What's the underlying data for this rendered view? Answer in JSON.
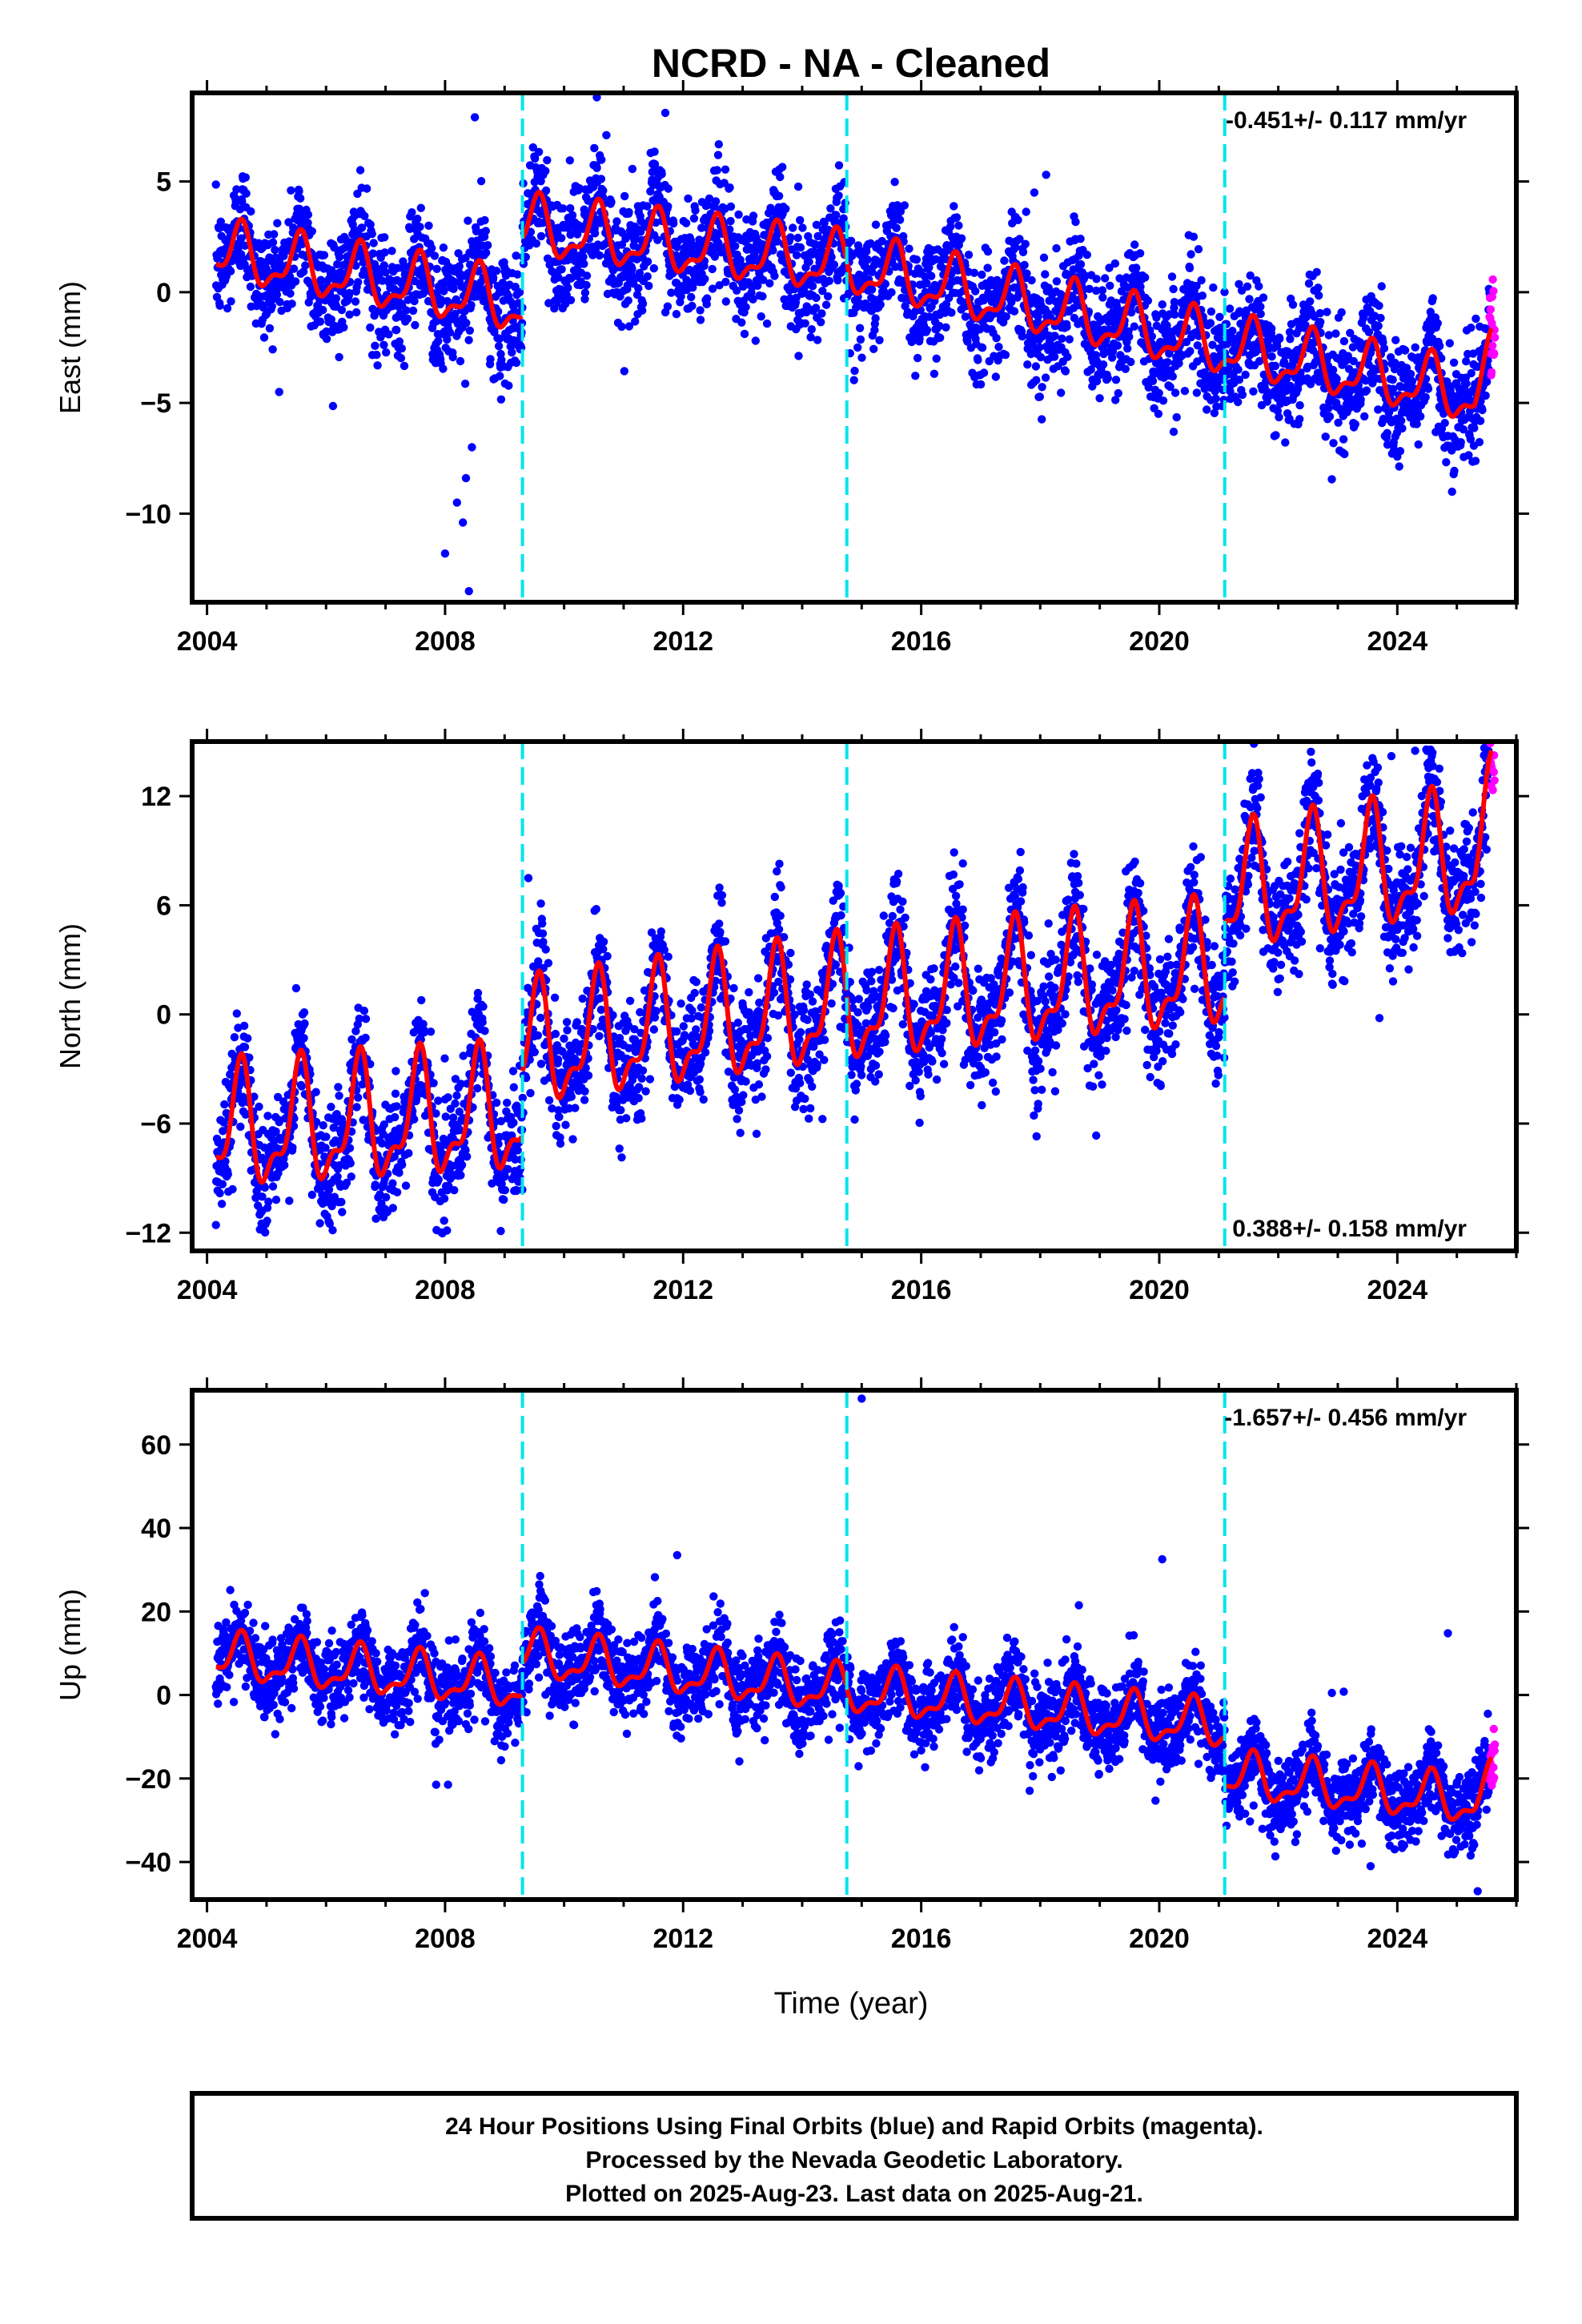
{
  "title": "NCRD  - NA - Cleaned",
  "footer": {
    "line1": "24 Hour Positions Using Final Orbits (blue) and Rapid Orbits (magenta).",
    "line2": "Processed by the Nevada Geodetic Laboratory.",
    "line3": "Plotted on 2025-Aug-23. Last data on 2025-Aug-21."
  },
  "colors": {
    "final_orbits": "#0000ff",
    "rapid_orbits": "#ff00ff",
    "model_fit": "#ff0000",
    "offset_lines": "#00e5ee"
  },
  "chart_data": [
    {
      "type": "scatter",
      "ylabel": "East (mm)",
      "xlabel": "",
      "rate_label": "-0.451+/- 0.117 mm/yr",
      "xlim": [
        2003.75,
        2026.0
      ],
      "ylim": [
        -14,
        9
      ],
      "xticks": [
        2004,
        2008,
        2012,
        2016,
        2020,
        2024
      ],
      "xtick_labels": [
        "2004",
        "2008",
        "2012",
        "2016",
        "2020",
        "2024"
      ],
      "yticks": [
        -10,
        -5,
        0,
        5
      ],
      "ytick_labels": [
        "−10",
        "−5",
        "0",
        "5"
      ],
      "offset_epochs": [
        2009.3,
        2014.75,
        2021.1
      ],
      "model": {
        "knots": [
          [
            2004.15,
            1.8
          ],
          [
            2009.3,
            -0.6
          ],
          [
            2009.3,
            2.9
          ],
          [
            2014.75,
            1.2
          ],
          [
            2021.1,
            -2.5
          ],
          [
            2025.6,
            -4.8
          ]
        ],
        "annual_amplitude": 1.2,
        "peak_phase_year": 0.55,
        "end_upturn": 1.5
      },
      "scatter_model": {
        "start": 2004.15,
        "end": 2025.55,
        "rapid_start": 2025.55,
        "rapid_end": 2025.64,
        "scatter_sd": 1.3
      },
      "outliers": [
        [
          2008.0,
          -11.8
        ],
        [
          2008.2,
          -9.5
        ],
        [
          2008.3,
          -10.4
        ],
        [
          2008.35,
          -8.4
        ],
        [
          2008.4,
          -13.5
        ],
        [
          2008.45,
          -7.0
        ],
        [
          2008.5,
          7.9
        ],
        [
          2010.55,
          8.8
        ],
        [
          2011.7,
          8.1
        ],
        [
          2017.9,
          4.5
        ],
        [
          2018.1,
          5.3
        ]
      ],
      "series": [
        {
          "name": "Final Orbits (blue)",
          "role": "final"
        },
        {
          "name": "Rapid Orbits (magenta)",
          "role": "rapid"
        }
      ]
    },
    {
      "type": "scatter",
      "ylabel": "North (mm)",
      "xlabel": "",
      "rate_label": "0.388+/- 0.158 mm/yr",
      "xlim": [
        2003.75,
        2026.0
      ],
      "ylim": [
        -13,
        15
      ],
      "xticks": [
        2004,
        2008,
        2012,
        2016,
        2020,
        2024
      ],
      "xtick_labels": [
        "2004",
        "2008",
        "2012",
        "2016",
        "2020",
        "2024"
      ],
      "yticks": [
        -12,
        -6,
        0,
        6,
        12
      ],
      "ytick_labels": [
        "−12",
        "−6",
        "0",
        "6",
        "12"
      ],
      "offset_epochs": [
        2009.3,
        2014.75,
        2021.1
      ],
      "model": {
        "knots": [
          [
            2004.15,
            -6.5
          ],
          [
            2009.3,
            -5.5
          ],
          [
            2009.3,
            -2.0
          ],
          [
            2014.75,
            0.5
          ],
          [
            2021.1,
            2.5
          ],
          [
            2021.1,
            6.5
          ],
          [
            2025.6,
            8.8
          ]
        ],
        "annual_amplitude": 3.0,
        "peak_phase_year": 0.55,
        "end_upturn": 1.5
      },
      "scatter_model": {
        "start": 2004.15,
        "end": 2025.55,
        "rapid_start": 2025.55,
        "rapid_end": 2025.64,
        "scatter_sd": 1.6
      },
      "outliers": [
        [
          2009.4,
          7.5
        ],
        [
          2016.7,
          8.3
        ],
        [
          2024.3,
          14.5
        ],
        [
          2023.9,
          14.2
        ],
        [
          2025.5,
          14.5
        ],
        [
          2023.7,
          -0.2
        ]
      ],
      "series": [
        {
          "name": "Final Orbits (blue)",
          "role": "final"
        },
        {
          "name": "Rapid Orbits (magenta)",
          "role": "rapid"
        }
      ]
    },
    {
      "type": "scatter",
      "ylabel": "Up (mm)",
      "xlabel": "Time (year)",
      "rate_label": "-1.657+/- 0.456 mm/yr",
      "xlim": [
        2003.75,
        2026.0
      ],
      "ylim": [
        -49,
        73
      ],
      "xticks": [
        2004,
        2008,
        2012,
        2016,
        2020,
        2024
      ],
      "xtick_labels": [
        "2004",
        "2008",
        "2012",
        "2016",
        "2020",
        "2024"
      ],
      "yticks": [
        -40,
        -20,
        0,
        20,
        40,
        60
      ],
      "ytick_labels": [
        "−40",
        "−20",
        "0",
        "20",
        "40",
        "60"
      ],
      "offset_epochs": [
        2009.3,
        2014.75,
        2021.1
      ],
      "model": {
        "knots": [
          [
            2004.15,
            9.0
          ],
          [
            2009.3,
            2.0
          ],
          [
            2009.3,
            9.5
          ],
          [
            2014.75,
            1.0
          ],
          [
            2021.1,
            -7.5
          ],
          [
            2021.1,
            -19.5
          ],
          [
            2025.6,
            -26.0
          ]
        ],
        "annual_amplitude": 5.0,
        "peak_phase_year": 0.55,
        "end_upturn": 4.0
      },
      "scatter_model": {
        "start": 2004.15,
        "end": 2025.55,
        "rapid_start": 2025.55,
        "rapid_end": 2025.64,
        "scatter_sd": 4.8
      },
      "outliers": [
        [
          2015.0,
          71.0
        ],
        [
          2011.9,
          33.5
        ],
        [
          2020.05,
          32.5
        ],
        [
          2018.65,
          21.5
        ],
        [
          2024.85,
          14.8
        ],
        [
          2007.85,
          -21.5
        ],
        [
          2008.05,
          -21.5
        ],
        [
          2025.35,
          -47.0
        ],
        [
          2023.55,
          -41.0
        ],
        [
          2022.9,
          0.5
        ],
        [
          2023.1,
          0.8
        ]
      ],
      "series": [
        {
          "name": "Final Orbits (blue)",
          "role": "final"
        },
        {
          "name": "Rapid Orbits (magenta)",
          "role": "rapid"
        }
      ]
    }
  ]
}
